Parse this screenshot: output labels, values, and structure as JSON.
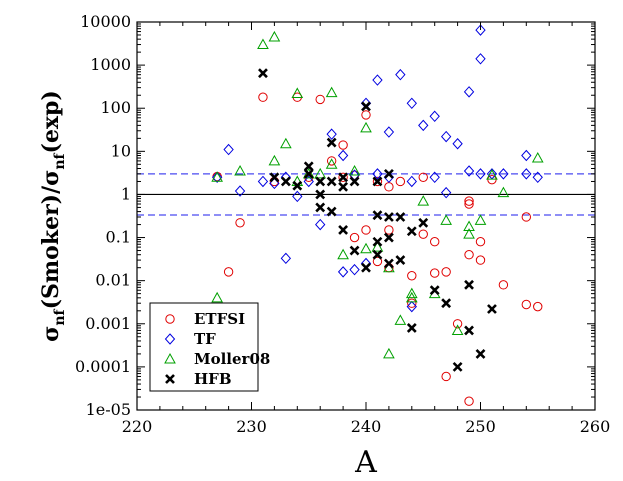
{
  "chart_data": {
    "type": "scatter",
    "title": "",
    "xlabel": "A",
    "ylabel_parts": [
      "σ",
      "nf",
      "(Smoker)/σ",
      "nf",
      "(exp)"
    ],
    "xlim": [
      220,
      260
    ],
    "ylim": [
      1e-05,
      10000
    ],
    "yscale": "log",
    "x_ticks": [
      220,
      230,
      240,
      250,
      260
    ],
    "x_tick_labels": [
      "220",
      "230",
      "240",
      "250",
      "260"
    ],
    "y_ticks": [
      1e-05,
      0.0001,
      0.001,
      0.01,
      0.1,
      1,
      10,
      100,
      1000,
      10000
    ],
    "y_tick_labels": [
      "1e-05",
      "0.0001",
      "0.001",
      "0.01",
      "0.1",
      "1",
      "10",
      "100",
      "1000",
      "10000"
    ],
    "grid": false,
    "legend_position": "bottom-left",
    "reference_lines": [
      {
        "y": 1,
        "style": "solid",
        "color": "#000000"
      },
      {
        "y": 3,
        "style": "dashed",
        "color": "#4a4af0"
      },
      {
        "y": 0.333,
        "style": "dashed",
        "color": "#4a4af0"
      }
    ],
    "series": [
      {
        "name": "ETFSI",
        "marker": "circle",
        "color": "#e00000",
        "points": [
          [
            227,
            2.6
          ],
          [
            228,
            0.016
          ],
          [
            229,
            0.22
          ],
          [
            231,
            180
          ],
          [
            232,
            2.0
          ],
          [
            234,
            180
          ],
          [
            235,
            2.5
          ],
          [
            236,
            160
          ],
          [
            237,
            6
          ],
          [
            238,
            14
          ],
          [
            238,
            2.5
          ],
          [
            239,
            2.8
          ],
          [
            239,
            0.1
          ],
          [
            240,
            70
          ],
          [
            240,
            0.15
          ],
          [
            241,
            2.0
          ],
          [
            241,
            0.028
          ],
          [
            242,
            1.5
          ],
          [
            242,
            0.15
          ],
          [
            242,
            0.02
          ],
          [
            243,
            2.0
          ],
          [
            244,
            0.013
          ],
          [
            244,
            0.003
          ],
          [
            245,
            2.5
          ],
          [
            245,
            0.12
          ],
          [
            246,
            0.08
          ],
          [
            246,
            0.015
          ],
          [
            247,
            0.016
          ],
          [
            247,
            6e-05
          ],
          [
            248,
            0.001
          ],
          [
            249,
            0.7
          ],
          [
            249,
            0.6
          ],
          [
            249,
            0.04
          ],
          [
            249,
            1.6e-05
          ],
          [
            250,
            0.08
          ],
          [
            250,
            0.03
          ],
          [
            251,
            2.2
          ],
          [
            252,
            0.008
          ],
          [
            254,
            0.3
          ],
          [
            254,
            0.0028
          ],
          [
            255,
            0.0025
          ]
        ]
      },
      {
        "name": "TF",
        "marker": "diamond",
        "color": "#0000e0",
        "points": [
          [
            227,
            2.5
          ],
          [
            228,
            11
          ],
          [
            229,
            1.2
          ],
          [
            231,
            2.0
          ],
          [
            232,
            1.8
          ],
          [
            233,
            0.033
          ],
          [
            233,
            2.5
          ],
          [
            234,
            0.9
          ],
          [
            235,
            2.0
          ],
          [
            236,
            0.2
          ],
          [
            237,
            25
          ],
          [
            238,
            8
          ],
          [
            238,
            0.016
          ],
          [
            239,
            2.8
          ],
          [
            239,
            0.018
          ],
          [
            240,
            130
          ],
          [
            240,
            0.025
          ],
          [
            241,
            450
          ],
          [
            241,
            3.0
          ],
          [
            242,
            28
          ],
          [
            242,
            2.5
          ],
          [
            243,
            600
          ],
          [
            244,
            130
          ],
          [
            244,
            2.0
          ],
          [
            244,
            0.0025
          ],
          [
            245,
            40
          ],
          [
            246,
            65
          ],
          [
            246,
            2.5
          ],
          [
            247,
            22
          ],
          [
            247,
            1.1
          ],
          [
            248,
            15
          ],
          [
            249,
            240
          ],
          [
            249,
            3.5
          ],
          [
            250,
            6500
          ],
          [
            250,
            1400
          ],
          [
            250,
            3.0
          ],
          [
            251,
            3.0
          ],
          [
            252,
            3.0
          ],
          [
            254,
            8
          ],
          [
            254,
            3.0
          ],
          [
            255,
            2.5
          ]
        ]
      },
      {
        "name": "Moller08",
        "marker": "triangle",
        "color": "#00a000",
        "points": [
          [
            227,
            0.004
          ],
          [
            227,
            2.5
          ],
          [
            229,
            3.5
          ],
          [
            231,
            3000
          ],
          [
            232,
            4500
          ],
          [
            232,
            6
          ],
          [
            233,
            15
          ],
          [
            234,
            220
          ],
          [
            234,
            2.0
          ],
          [
            235,
            3.0
          ],
          [
            236,
            3.0
          ],
          [
            237,
            230
          ],
          [
            237,
            5
          ],
          [
            238,
            0.04
          ],
          [
            239,
            3.5
          ],
          [
            240,
            35
          ],
          [
            240,
            0.055
          ],
          [
            241,
            0.06
          ],
          [
            242,
            0.02
          ],
          [
            242,
            0.0002
          ],
          [
            243,
            0.0012
          ],
          [
            244,
            0.005
          ],
          [
            244,
            0.004
          ],
          [
            245,
            0.7
          ],
          [
            246,
            0.005
          ],
          [
            247,
            0.25
          ],
          [
            248,
            0.0007
          ],
          [
            249,
            0.18
          ],
          [
            249,
            0.12
          ],
          [
            250,
            0.25
          ],
          [
            251,
            2.8
          ],
          [
            252,
            1.1
          ],
          [
            255,
            7
          ]
        ]
      },
      {
        "name": "HFB",
        "marker": "x",
        "color": "#000000",
        "points": [
          [
            231,
            650
          ],
          [
            232,
            2.5
          ],
          [
            233,
            2.0
          ],
          [
            234,
            1.6
          ],
          [
            235,
            4.5
          ],
          [
            235,
            3.0
          ],
          [
            236,
            2.0
          ],
          [
            236,
            1.0
          ],
          [
            236,
            0.5
          ],
          [
            237,
            16
          ],
          [
            237,
            2.0
          ],
          [
            237,
            0.4
          ],
          [
            238,
            2.5
          ],
          [
            238,
            1.5
          ],
          [
            238,
            0.15
          ],
          [
            239,
            2.0
          ],
          [
            239,
            0.05
          ],
          [
            240,
            110
          ],
          [
            240,
            0.02
          ],
          [
            241,
            2.0
          ],
          [
            241,
            0.33
          ],
          [
            241,
            0.08
          ],
          [
            241,
            0.04
          ],
          [
            242,
            3.0
          ],
          [
            242,
            0.3
          ],
          [
            242,
            0.1
          ],
          [
            242,
            0.025
          ],
          [
            243,
            0.3
          ],
          [
            243,
            0.03
          ],
          [
            244,
            0.14
          ],
          [
            244,
            0.0008
          ],
          [
            245,
            0.22
          ],
          [
            246,
            0.006
          ],
          [
            247,
            0.003
          ],
          [
            248,
            0.0001
          ],
          [
            249,
            0.008
          ],
          [
            249,
            0.0007
          ],
          [
            250,
            0.0002
          ],
          [
            251,
            0.0022
          ]
        ]
      }
    ]
  }
}
